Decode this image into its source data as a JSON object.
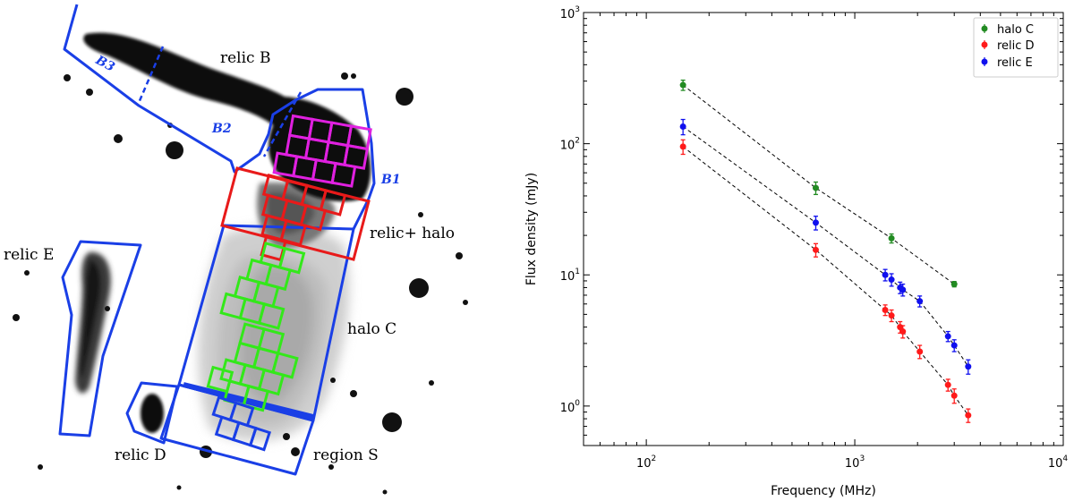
{
  "image_panel": {
    "labels": {
      "relic_b": "relic B",
      "relic_e": "relic E",
      "relic_d": "relic D",
      "halo_c": "halo C",
      "relic_halo": "relic+ halo",
      "region_s": "region S",
      "b1": "B1",
      "b2": "B2",
      "b3": "B3"
    },
    "colors": {
      "region_outline": "#1a3fe6",
      "magenta_grid": "#e020e0",
      "red_grid": "#e81a1a",
      "green_grid": "#33e81a",
      "blue_grid": "#1a3fe6",
      "emission": "#111111"
    }
  },
  "chart_data": {
    "type": "scatter",
    "title": "",
    "xlabel": "Frequency (MHz)",
    "ylabel": "Flux density (mJy)",
    "xscale": "log",
    "yscale": "log",
    "xlim": [
      50,
      10000
    ],
    "ylim": [
      0.5,
      1000
    ],
    "x_tick_labels": [
      "10",
      "10",
      "10"
    ],
    "x_tick_exponents": [
      "2",
      "3",
      "4"
    ],
    "y_tick_labels": [
      "10",
      "10",
      "10",
      "10"
    ],
    "y_tick_exponents": [
      "0",
      "1",
      "2",
      "3"
    ],
    "legend_location": "top-right",
    "series": [
      {
        "name": "halo C",
        "color": "#228b22",
        "points": [
          {
            "x": 150,
            "y": 280,
            "err": 25
          },
          {
            "x": 650,
            "y": 46,
            "err": 5
          },
          {
            "x": 1500,
            "y": 19,
            "err": 1.5
          },
          {
            "x": 3000,
            "y": 8.5,
            "err": 0.4
          }
        ]
      },
      {
        "name": "relic D",
        "color": "#ff1a1a",
        "points": [
          {
            "x": 150,
            "y": 95,
            "err": 12
          },
          {
            "x": 650,
            "y": 15.5,
            "err": 1.8
          },
          {
            "x": 1400,
            "y": 5.4,
            "err": 0.5
          },
          {
            "x": 1500,
            "y": 4.9,
            "err": 0.5
          },
          {
            "x": 1650,
            "y": 4.0,
            "err": 0.4
          },
          {
            "x": 1700,
            "y": 3.7,
            "err": 0.4
          },
          {
            "x": 2050,
            "y": 2.6,
            "err": 0.3
          },
          {
            "x": 2800,
            "y": 1.45,
            "err": 0.15
          },
          {
            "x": 3000,
            "y": 1.2,
            "err": 0.15
          },
          {
            "x": 3500,
            "y": 0.85,
            "err": 0.1
          }
        ]
      },
      {
        "name": "relic E",
        "color": "#1010ee",
        "points": [
          {
            "x": 150,
            "y": 135,
            "err": 18
          },
          {
            "x": 650,
            "y": 25,
            "err": 3
          },
          {
            "x": 1400,
            "y": 10,
            "err": 1
          },
          {
            "x": 1500,
            "y": 9.2,
            "err": 1
          },
          {
            "x": 1650,
            "y": 8.0,
            "err": 0.8
          },
          {
            "x": 1700,
            "y": 7.7,
            "err": 0.8
          },
          {
            "x": 2050,
            "y": 6.3,
            "err": 0.6
          },
          {
            "x": 2800,
            "y": 3.4,
            "err": 0.3
          },
          {
            "x": 3000,
            "y": 2.9,
            "err": 0.3
          },
          {
            "x": 3500,
            "y": 2.0,
            "err": 0.25
          }
        ]
      }
    ]
  }
}
